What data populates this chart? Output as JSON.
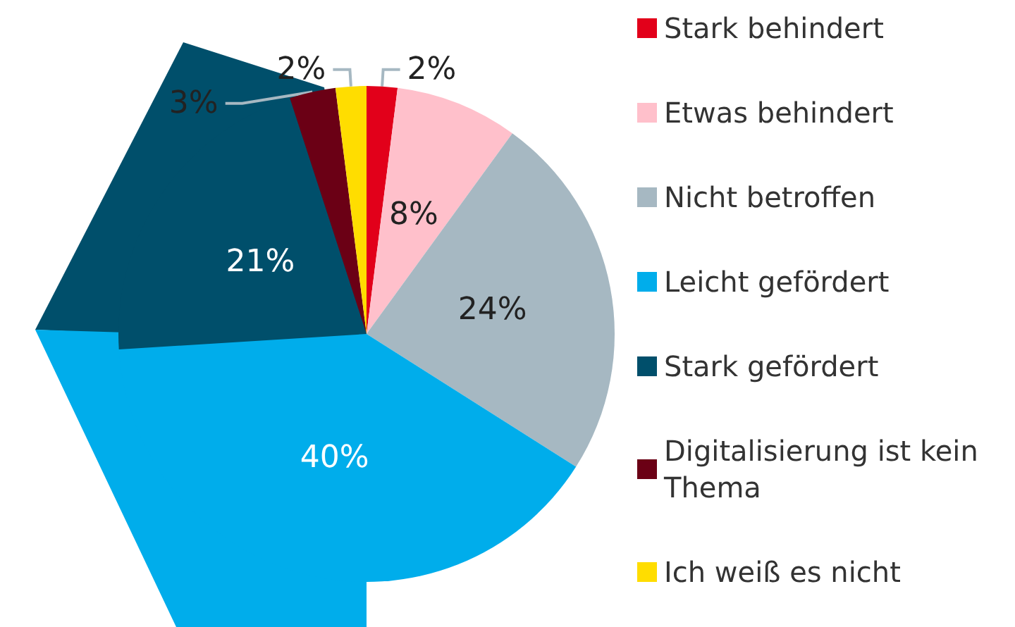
{
  "chart_data": {
    "type": "pie",
    "categories": [
      "Stark behindert",
      "Etwas behindert",
      "Nicht betroffen",
      "Leicht gefördert",
      "Stark gefördert",
      "Digitalisierung ist kein Thema",
      "Ich weiß es nicht"
    ],
    "values": [
      2,
      8,
      24,
      40,
      21,
      3,
      2
    ],
    "colors": [
      "#e2001a",
      "#ffc0cb",
      "#a6b8c2",
      "#00adeb",
      "#004f6b",
      "#6b0015",
      "#ffdd00"
    ],
    "value_labels": [
      "2%",
      "8%",
      "24%",
      "40%",
      "21%",
      "3%",
      "2%"
    ],
    "legend": "right"
  }
}
